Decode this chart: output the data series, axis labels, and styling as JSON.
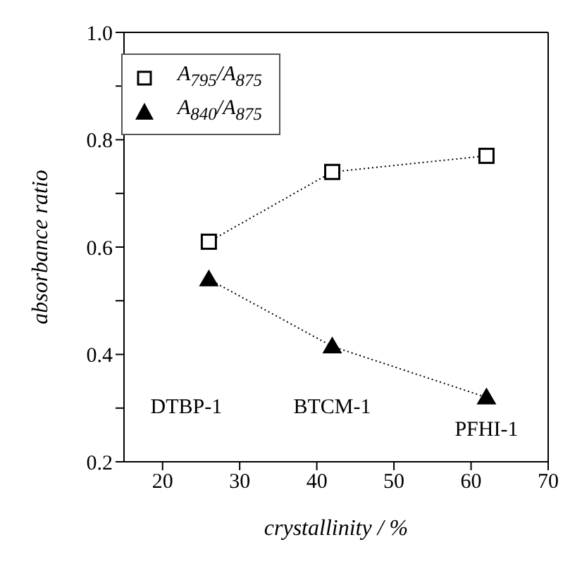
{
  "chart_data": {
    "type": "line",
    "xlabel": "crystallinity / %",
    "ylabel": "absorbance ratio",
    "xlim": [
      15,
      70
    ],
    "xticks": [
      20,
      30,
      40,
      50,
      60,
      70
    ],
    "ylim": [
      0.2,
      1.0
    ],
    "yticks": [
      0.2,
      {
        "value": 0.3,
        "label": null
      },
      0.4,
      {
        "value": 0.5,
        "label": null
      },
      0.6,
      {
        "value": 0.7,
        "label": null
      },
      0.8,
      {
        "value": 0.9,
        "label": null
      },
      {
        "value": 1.0,
        "label": "1.0"
      }
    ],
    "x": [
      26,
      42,
      62
    ],
    "series": [
      {
        "name": "A$_{795}$/A$_{875}$",
        "color": "#000000",
        "marker": "square",
        "values": [
          0.61,
          0.74,
          0.77
        ]
      },
      {
        "name": "A$_{840}$/A$_{875}$",
        "color": "#000000",
        "marker": "triangle",
        "values": [
          0.54,
          0.415,
          0.32
        ]
      }
    ],
    "line_style": "dotted",
    "legend": "top left",
    "annotations": [
      "DTBP-1",
      "BTCM-1",
      "PFHI-1"
    ]
  }
}
